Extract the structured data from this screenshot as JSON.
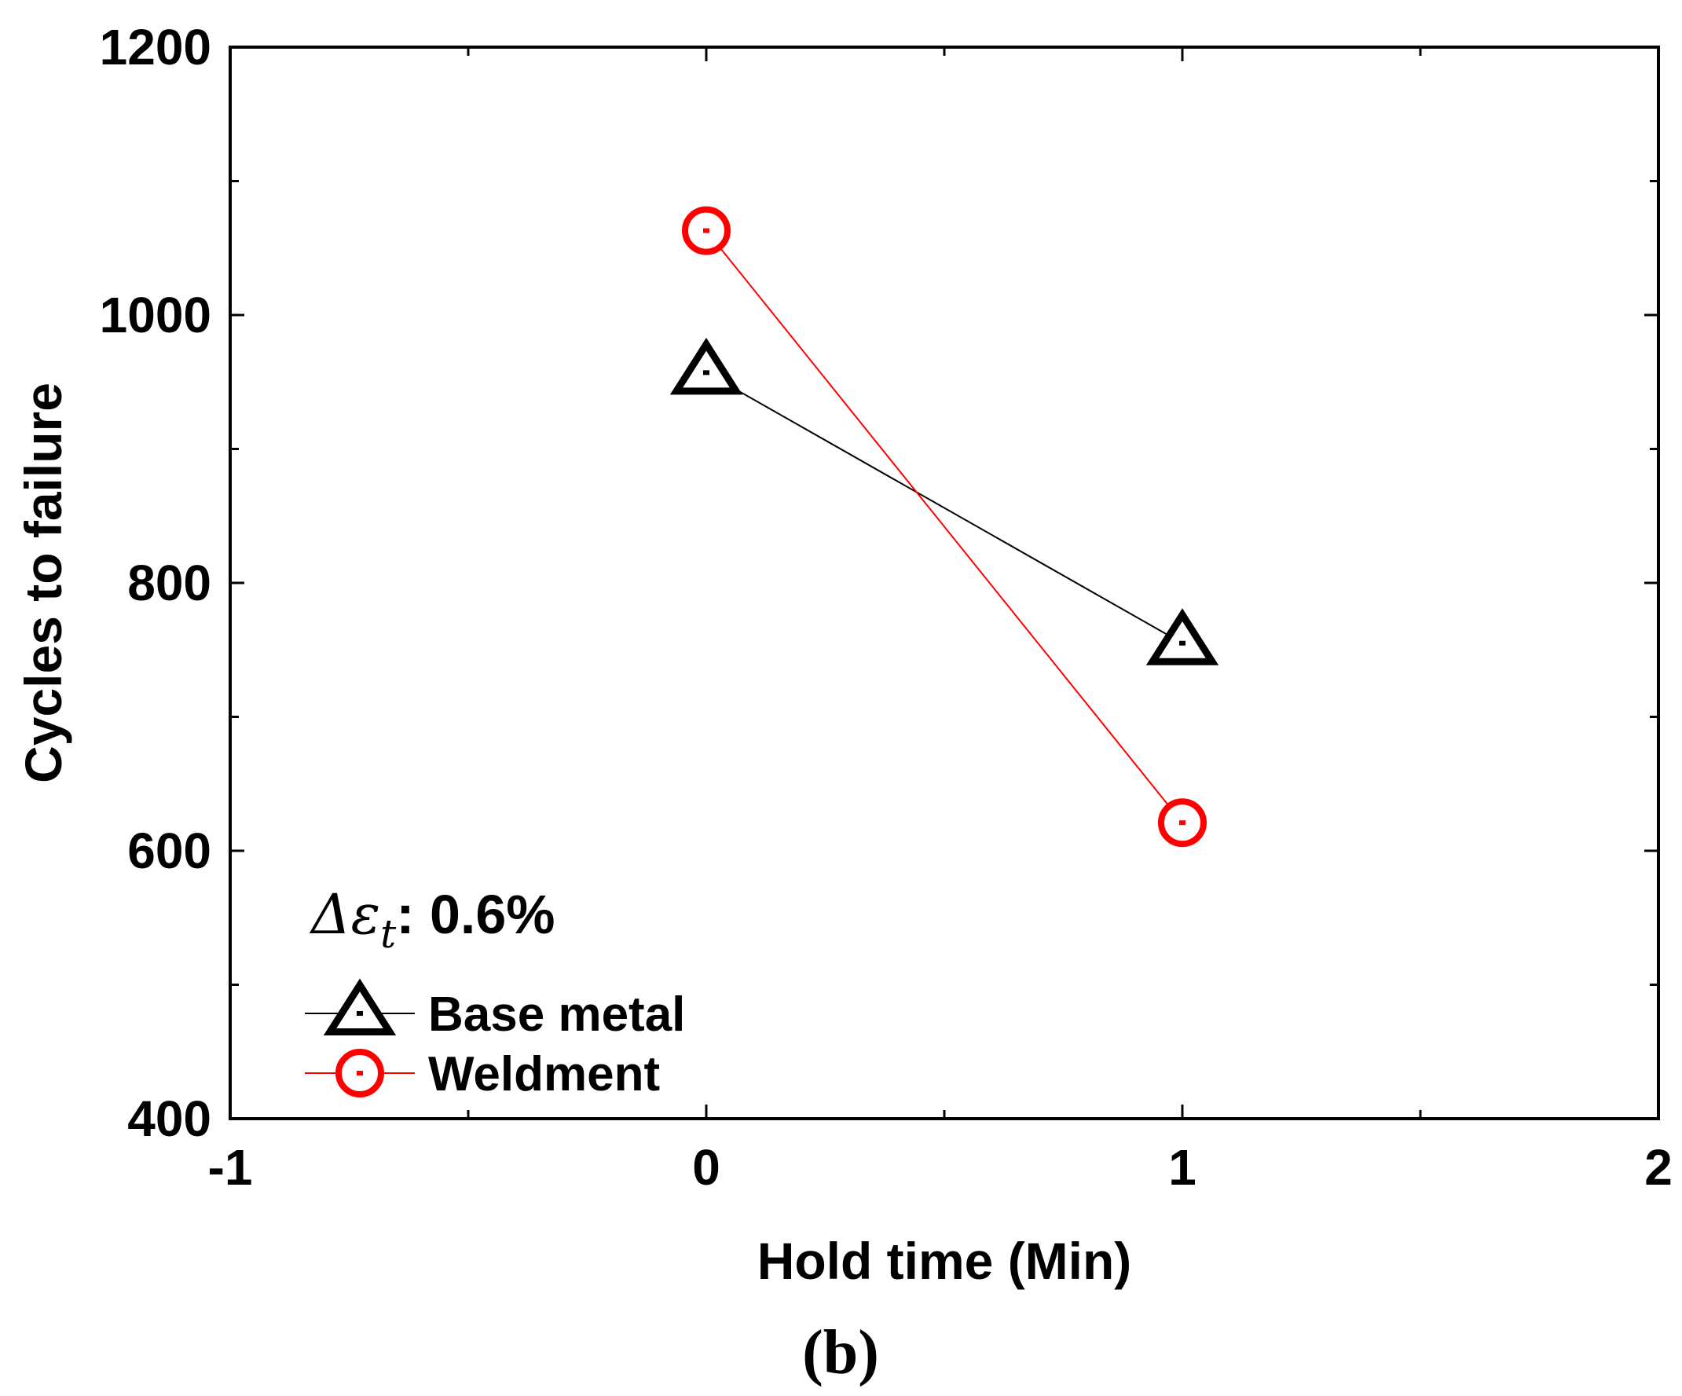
{
  "chart_data": {
    "type": "line",
    "xlabel": "Hold time (Min)",
    "ylabel": "Cycles to failure",
    "xlim": [
      -1,
      2
    ],
    "ylim": [
      400,
      1200
    ],
    "x_ticks": [
      "-1",
      "0",
      "1",
      "2"
    ],
    "y_ticks": [
      "400",
      "600",
      "800",
      "1000",
      "1200"
    ],
    "series": [
      {
        "name": "Base metal",
        "marker": "triangle",
        "color": "#000000",
        "x": [
          0,
          1
        ],
        "y": [
          957,
          755
        ]
      },
      {
        "name": "Weldment",
        "marker": "circle",
        "color": "#ff0000",
        "x": [
          0,
          1
        ],
        "y": [
          1063,
          621
        ]
      }
    ],
    "annotation": {
      "delta": "Δ",
      "symbol": "ε",
      "subscript": "t",
      "text": ": 0.6%"
    },
    "panel_label": "(b)",
    "grid": false,
    "legend_position": "lower-left"
  }
}
